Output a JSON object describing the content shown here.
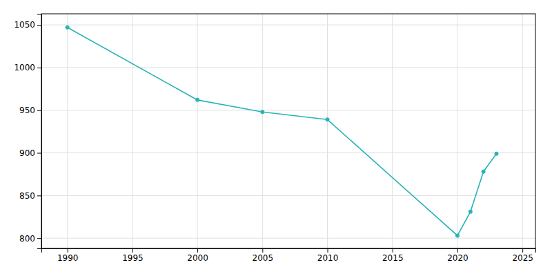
{
  "chart_data": {
    "type": "line",
    "x": [
      1990,
      2000,
      2005,
      2010,
      2020,
      2021,
      2022,
      2023
    ],
    "values": [
      1047,
      962,
      948,
      939,
      803,
      831,
      878,
      899
    ],
    "color": "#2AB5B5",
    "marker": "circle",
    "xlim": [
      1988,
      2026
    ],
    "ylim": [
      788,
      1063
    ],
    "xticks": [
      1990,
      1995,
      2000,
      2005,
      2010,
      2015,
      2020,
      2025
    ],
    "yticks": [
      800,
      850,
      900,
      950,
      1000,
      1050
    ],
    "grid": true
  }
}
